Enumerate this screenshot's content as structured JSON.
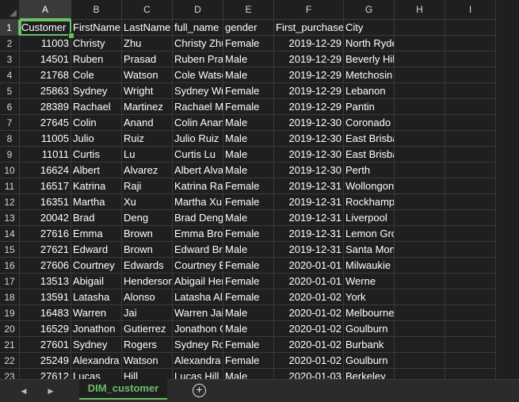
{
  "columns": [
    "A",
    "B",
    "C",
    "D",
    "E",
    "F",
    "G",
    "H",
    "I"
  ],
  "selected_column": "A",
  "selected_row": "1",
  "rows": [
    {
      "n": "1",
      "cells": [
        "Customer",
        "FirstName",
        "LastName",
        "full_name",
        "gender",
        "First_purchase",
        "City"
      ]
    },
    {
      "n": "2",
      "cells": [
        "11003",
        "Christy",
        "Zhu",
        "Christy Zhu",
        "Female",
        "2019-12-29",
        "North Ryde"
      ]
    },
    {
      "n": "3",
      "cells": [
        "14501",
        "Ruben",
        "Prasad",
        "Ruben Prasad",
        "Male",
        "2019-12-29",
        "Beverly Hills"
      ]
    },
    {
      "n": "4",
      "cells": [
        "21768",
        "Cole",
        "Watson",
        "Cole Watson",
        "Male",
        "2019-12-29",
        "Metchosin"
      ]
    },
    {
      "n": "5",
      "cells": [
        "25863",
        "Sydney",
        "Wright",
        "Sydney Wright",
        "Female",
        "2019-12-29",
        "Lebanon"
      ]
    },
    {
      "n": "6",
      "cells": [
        "28389",
        "Rachael",
        "Martinez",
        "Rachael Martinez",
        "Female",
        "2019-12-29",
        "Pantin"
      ]
    },
    {
      "n": "7",
      "cells": [
        "27645",
        "Colin",
        "Anand",
        "Colin Anand",
        "Male",
        "2019-12-30",
        "Coronado"
      ]
    },
    {
      "n": "8",
      "cells": [
        "11005",
        "Julio",
        "Ruiz",
        "Julio Ruiz",
        "Male",
        "2019-12-30",
        "East Brisbane"
      ]
    },
    {
      "n": "9",
      "cells": [
        "11011",
        "Curtis",
        "Lu",
        "Curtis Lu",
        "Male",
        "2019-12-30",
        "East Brisbane"
      ]
    },
    {
      "n": "10",
      "cells": [
        "16624",
        "Albert",
        "Alvarez",
        "Albert Alvarez",
        "Male",
        "2019-12-30",
        "Perth"
      ]
    },
    {
      "n": "11",
      "cells": [
        "16517",
        "Katrina",
        "Raji",
        "Katrina Raji",
        "Female",
        "2019-12-31",
        "Wollongong"
      ]
    },
    {
      "n": "12",
      "cells": [
        "16351",
        "Martha",
        "Xu",
        "Martha Xu",
        "Female",
        "2019-12-31",
        "Rockhampton"
      ]
    },
    {
      "n": "13",
      "cells": [
        "20042",
        "Brad",
        "Deng",
        "Brad Deng",
        "Male",
        "2019-12-31",
        "Liverpool"
      ]
    },
    {
      "n": "14",
      "cells": [
        "27616",
        "Emma",
        "Brown",
        "Emma Brown",
        "Female",
        "2019-12-31",
        "Lemon Grove"
      ]
    },
    {
      "n": "15",
      "cells": [
        "27621",
        "Edward",
        "Brown",
        "Edward Brown",
        "Male",
        "2019-12-31",
        "Santa Monica"
      ]
    },
    {
      "n": "16",
      "cells": [
        "27606",
        "Courtney",
        "Edwards",
        "Courtney Edwards",
        "Female",
        "2020-01-01",
        "Milwaukie"
      ]
    },
    {
      "n": "17",
      "cells": [
        "13513",
        "Abigail",
        "Henderson",
        "Abigail Henderson",
        "Female",
        "2020-01-01",
        "Werne"
      ]
    },
    {
      "n": "18",
      "cells": [
        "13591",
        "Latasha",
        "Alonso",
        "Latasha Alonso",
        "Female",
        "2020-01-02",
        "York"
      ]
    },
    {
      "n": "19",
      "cells": [
        "16483",
        "Warren",
        "Jai",
        "Warren Jai",
        "Male",
        "2020-01-02",
        "Melbourne"
      ]
    },
    {
      "n": "20",
      "cells": [
        "16529",
        "Jonathon",
        "Gutierrez",
        "Jonathon Gutierrez",
        "Male",
        "2020-01-02",
        "Goulburn"
      ]
    },
    {
      "n": "21",
      "cells": [
        "27601",
        "Sydney",
        "Rogers",
        "Sydney Rogers",
        "Female",
        "2020-01-02",
        "Burbank"
      ]
    },
    {
      "n": "22",
      "cells": [
        "25249",
        "Alexandra",
        "Watson",
        "Alexandra Watson",
        "Female",
        "2020-01-02",
        "Goulburn"
      ]
    },
    {
      "n": "23",
      "cells": [
        "27612",
        "Lucas",
        "Hill",
        "Lucas Hill",
        "Male",
        "2020-01-03",
        "Berkeley"
      ]
    }
  ],
  "tabbar": {
    "prev_icon": "◀",
    "next_icon": "▶",
    "sheet_tab": "DIM_customer",
    "add_icon": "+"
  },
  "colors": {
    "accent": "#6abf69",
    "background": "#1f1f1f",
    "grid": "#3a3a3a"
  }
}
